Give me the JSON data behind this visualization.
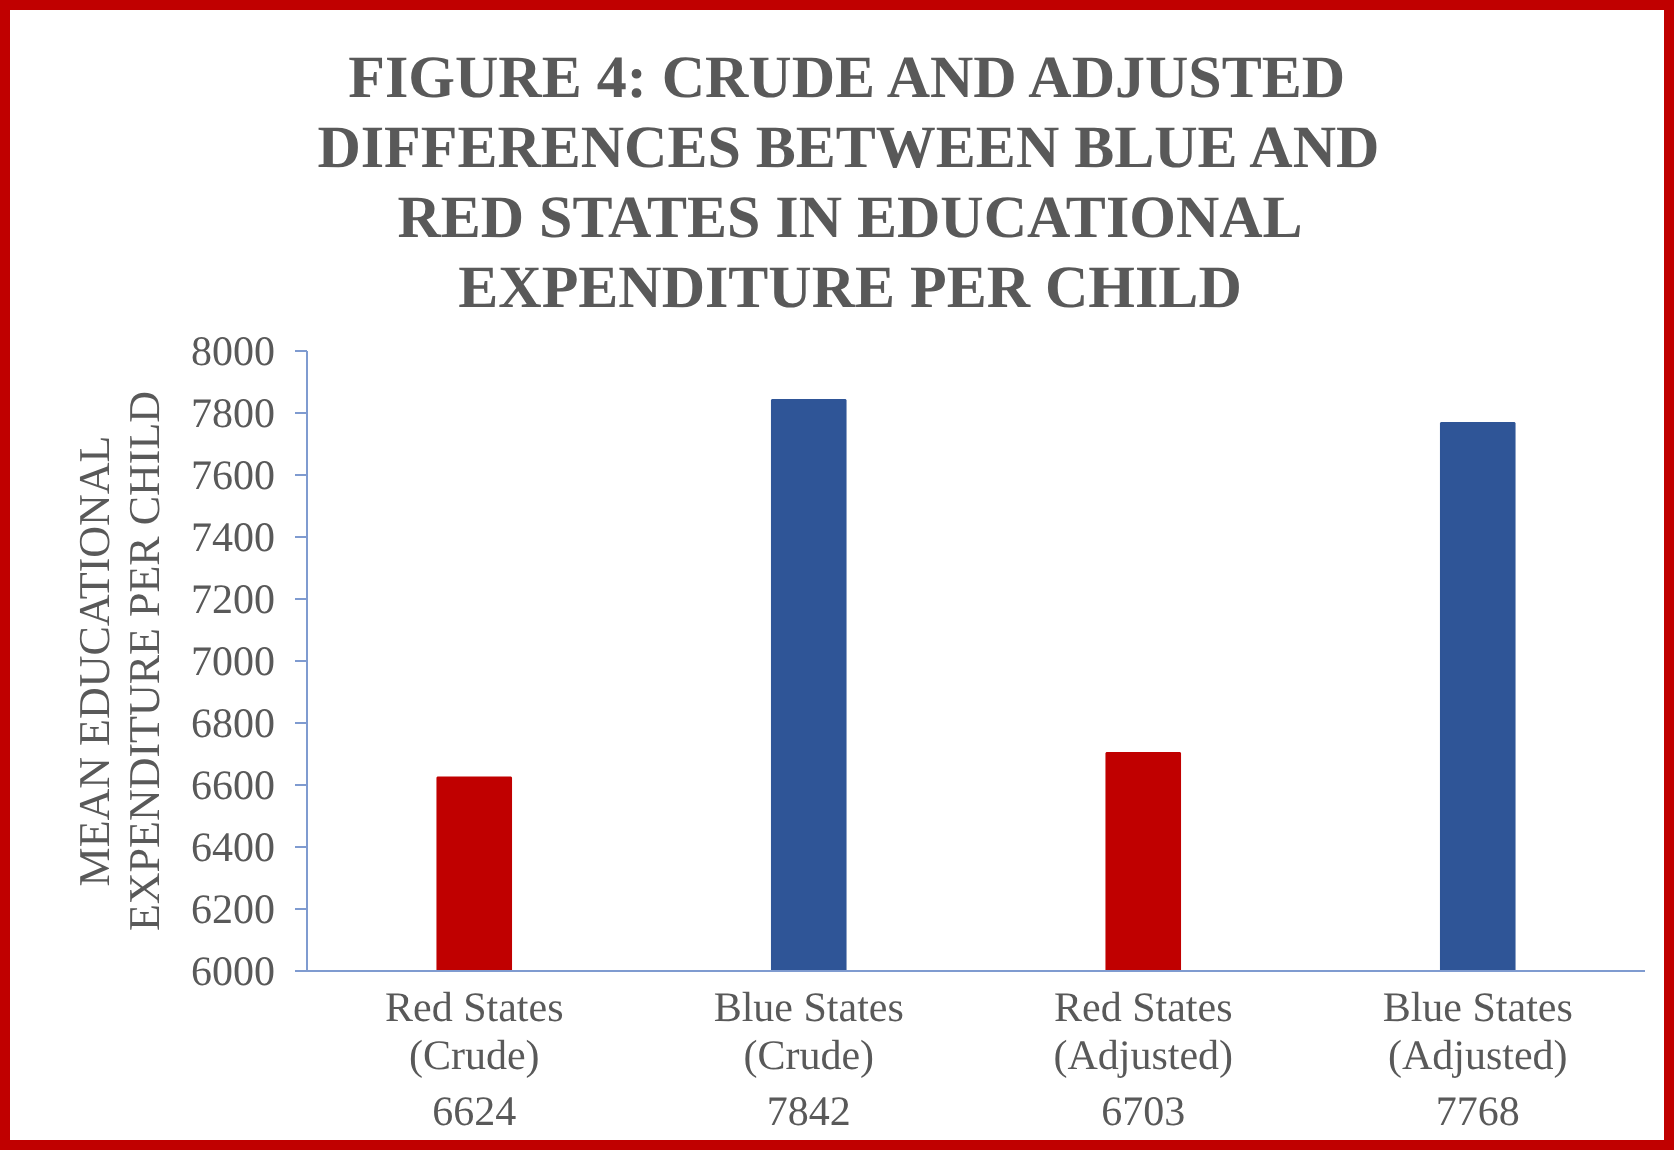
{
  "chart_data": {
    "type": "bar",
    "title": "FIGURE 4: CRUDE AND ADJUSTED DIFFERENCES BETWEEN BLUE AND RED STATES IN EDUCATIONAL EXPENDITURE PER CHILD",
    "ylabel": "MEAN EDUCATIONAL EXPENDITURE PER CHILD",
    "categories": [
      "Red States (Crude)",
      "Blue States (Crude)",
      "Red States (Adjusted)",
      "Blue States (Adjusted)"
    ],
    "values": [
      6624,
      7842,
      6703,
      7768
    ],
    "colors": [
      "#c00000",
      "#2f5597",
      "#c00000",
      "#2f5597"
    ],
    "ylim": [
      6000,
      8000
    ],
    "yticks": [
      6000,
      6200,
      6400,
      6600,
      6800,
      7000,
      7200,
      7400,
      7600,
      7800,
      8000
    ],
    "grid": false,
    "data_labels": true
  }
}
